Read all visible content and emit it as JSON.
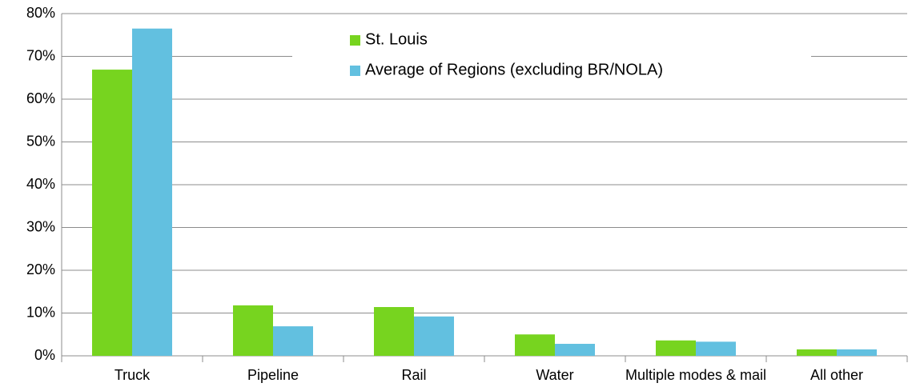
{
  "chart_data": {
    "type": "bar",
    "categories": [
      "Truck",
      "Pipeline",
      "Rail",
      "Water",
      "Multiple modes & mail",
      "All other"
    ],
    "series": [
      {
        "name": "St. Louis",
        "color": "#77d41f",
        "values": [
          66.9,
          11.8,
          11.4,
          5.0,
          3.6,
          1.5
        ]
      },
      {
        "name": "Average of Regions (excluding BR/NOLA)",
        "color": "#62c0e0",
        "values": [
          76.5,
          6.9,
          9.2,
          2.8,
          3.3,
          1.5
        ]
      }
    ],
    "ylim": [
      0,
      80
    ],
    "yticks": [
      {
        "value": 0,
        "label": "0%"
      },
      {
        "value": 10,
        "label": "10%"
      },
      {
        "value": 20,
        "label": "20%"
      },
      {
        "value": 30,
        "label": "30%"
      },
      {
        "value": 40,
        "label": "40%"
      },
      {
        "value": 50,
        "label": "50%"
      },
      {
        "value": 60,
        "label": "60%"
      },
      {
        "value": 70,
        "label": "70%"
      },
      {
        "value": 80,
        "label": "80%"
      }
    ],
    "grid": true
  }
}
